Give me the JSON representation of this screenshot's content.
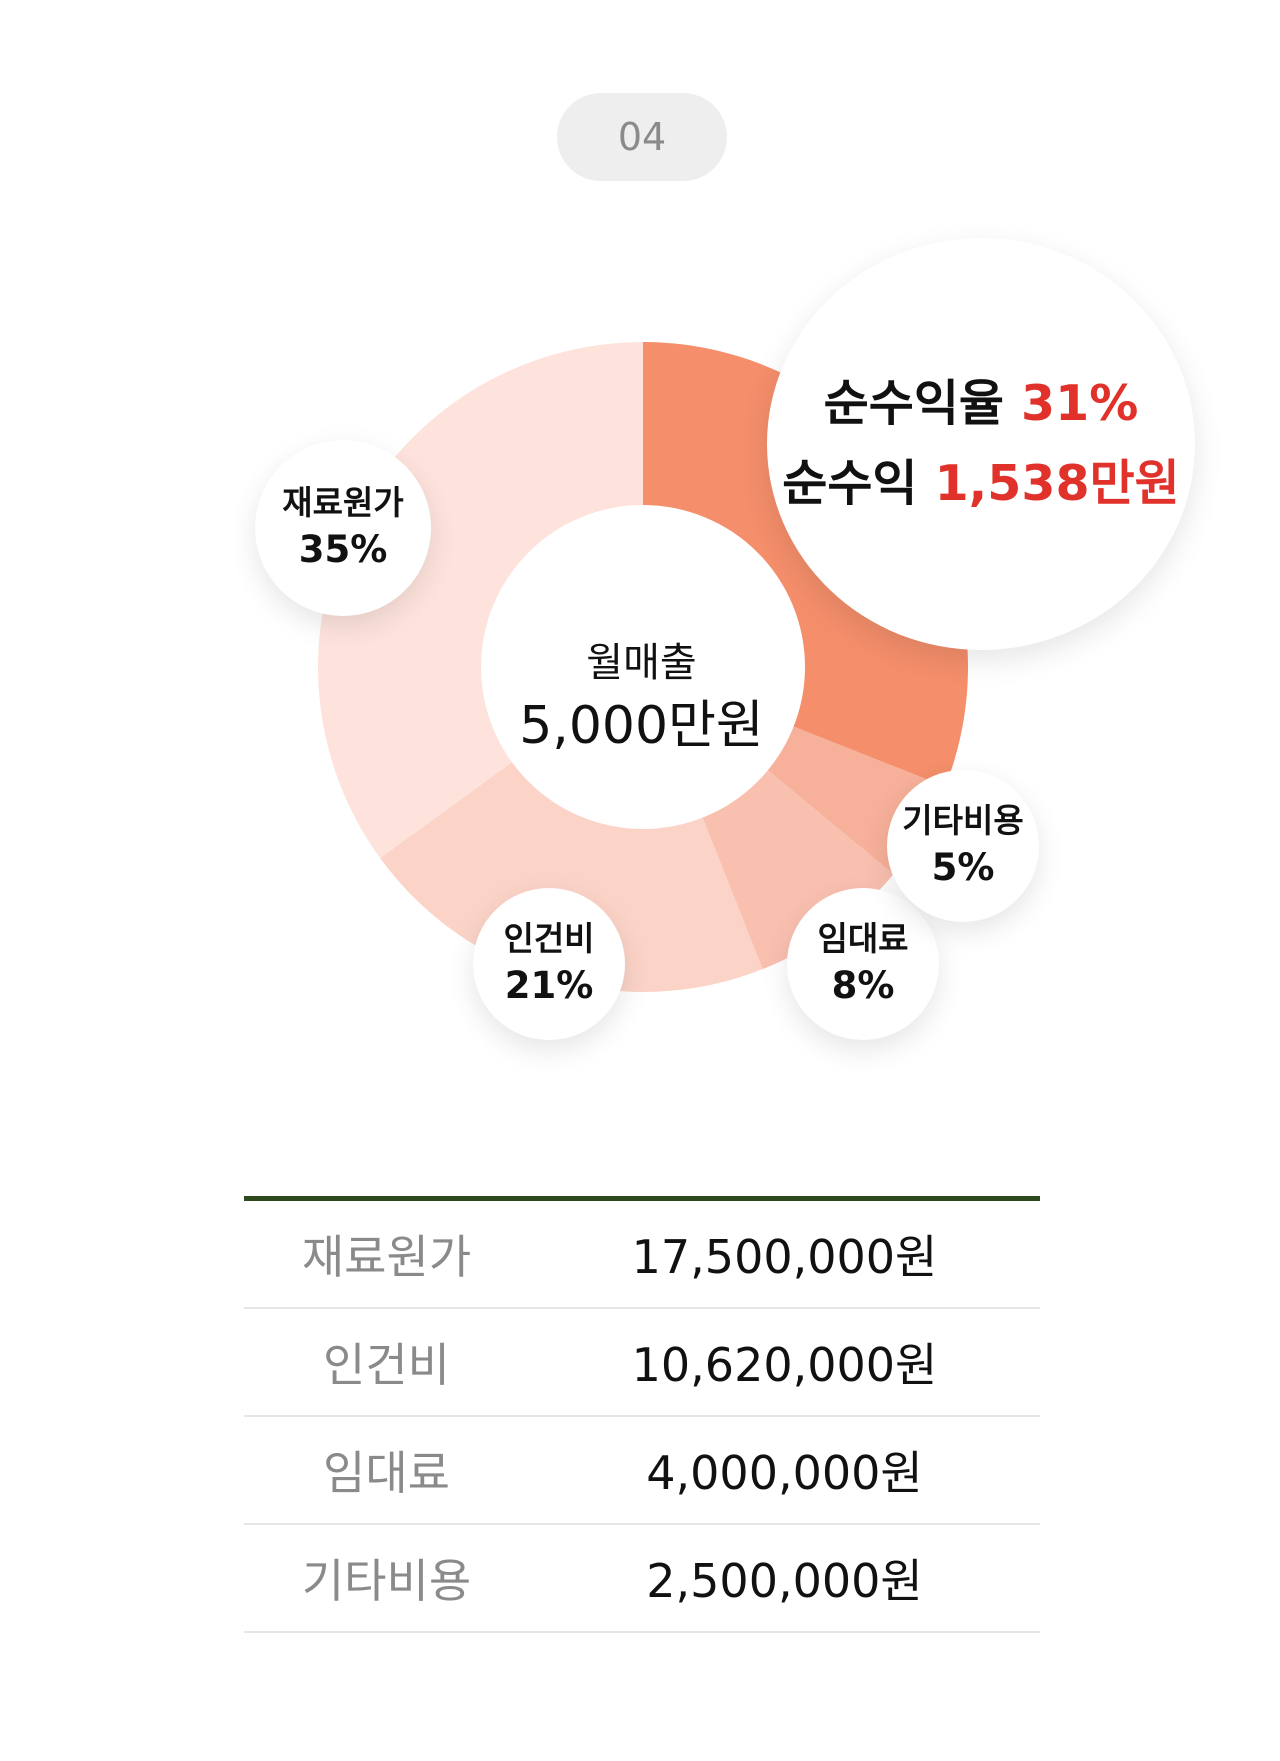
{
  "badge": "04",
  "center": {
    "label": "월매출",
    "value": "5,000만원"
  },
  "profit": {
    "rate_label": "순수익율",
    "rate_value": "31%",
    "amount_label": "순수익",
    "amount_value": "1,538만원"
  },
  "chart_data": {
    "type": "pie",
    "categories": [
      "순수익",
      "기타비용",
      "임대료",
      "인건비",
      "재료원가"
    ],
    "values": [
      31,
      5,
      8,
      21,
      35
    ],
    "colors": [
      "#f48e6b",
      "#f7b09a",
      "#f9c0b0",
      "#fbd3c7",
      "#fde3dc"
    ]
  },
  "labels": [
    {
      "name": "재료원가",
      "value": "35%"
    },
    {
      "name": "인건비",
      "value": "21%"
    },
    {
      "name": "임대료",
      "value": "8%"
    },
    {
      "name": "기타비용",
      "value": "5%"
    }
  ],
  "table": [
    {
      "label": "재료원가",
      "value": "17,500,000원"
    },
    {
      "label": "인건비",
      "value": "10,620,000원"
    },
    {
      "label": "임대료",
      "value": "4,000,000원"
    },
    {
      "label": "기타비용",
      "value": "2,500,000원"
    }
  ]
}
